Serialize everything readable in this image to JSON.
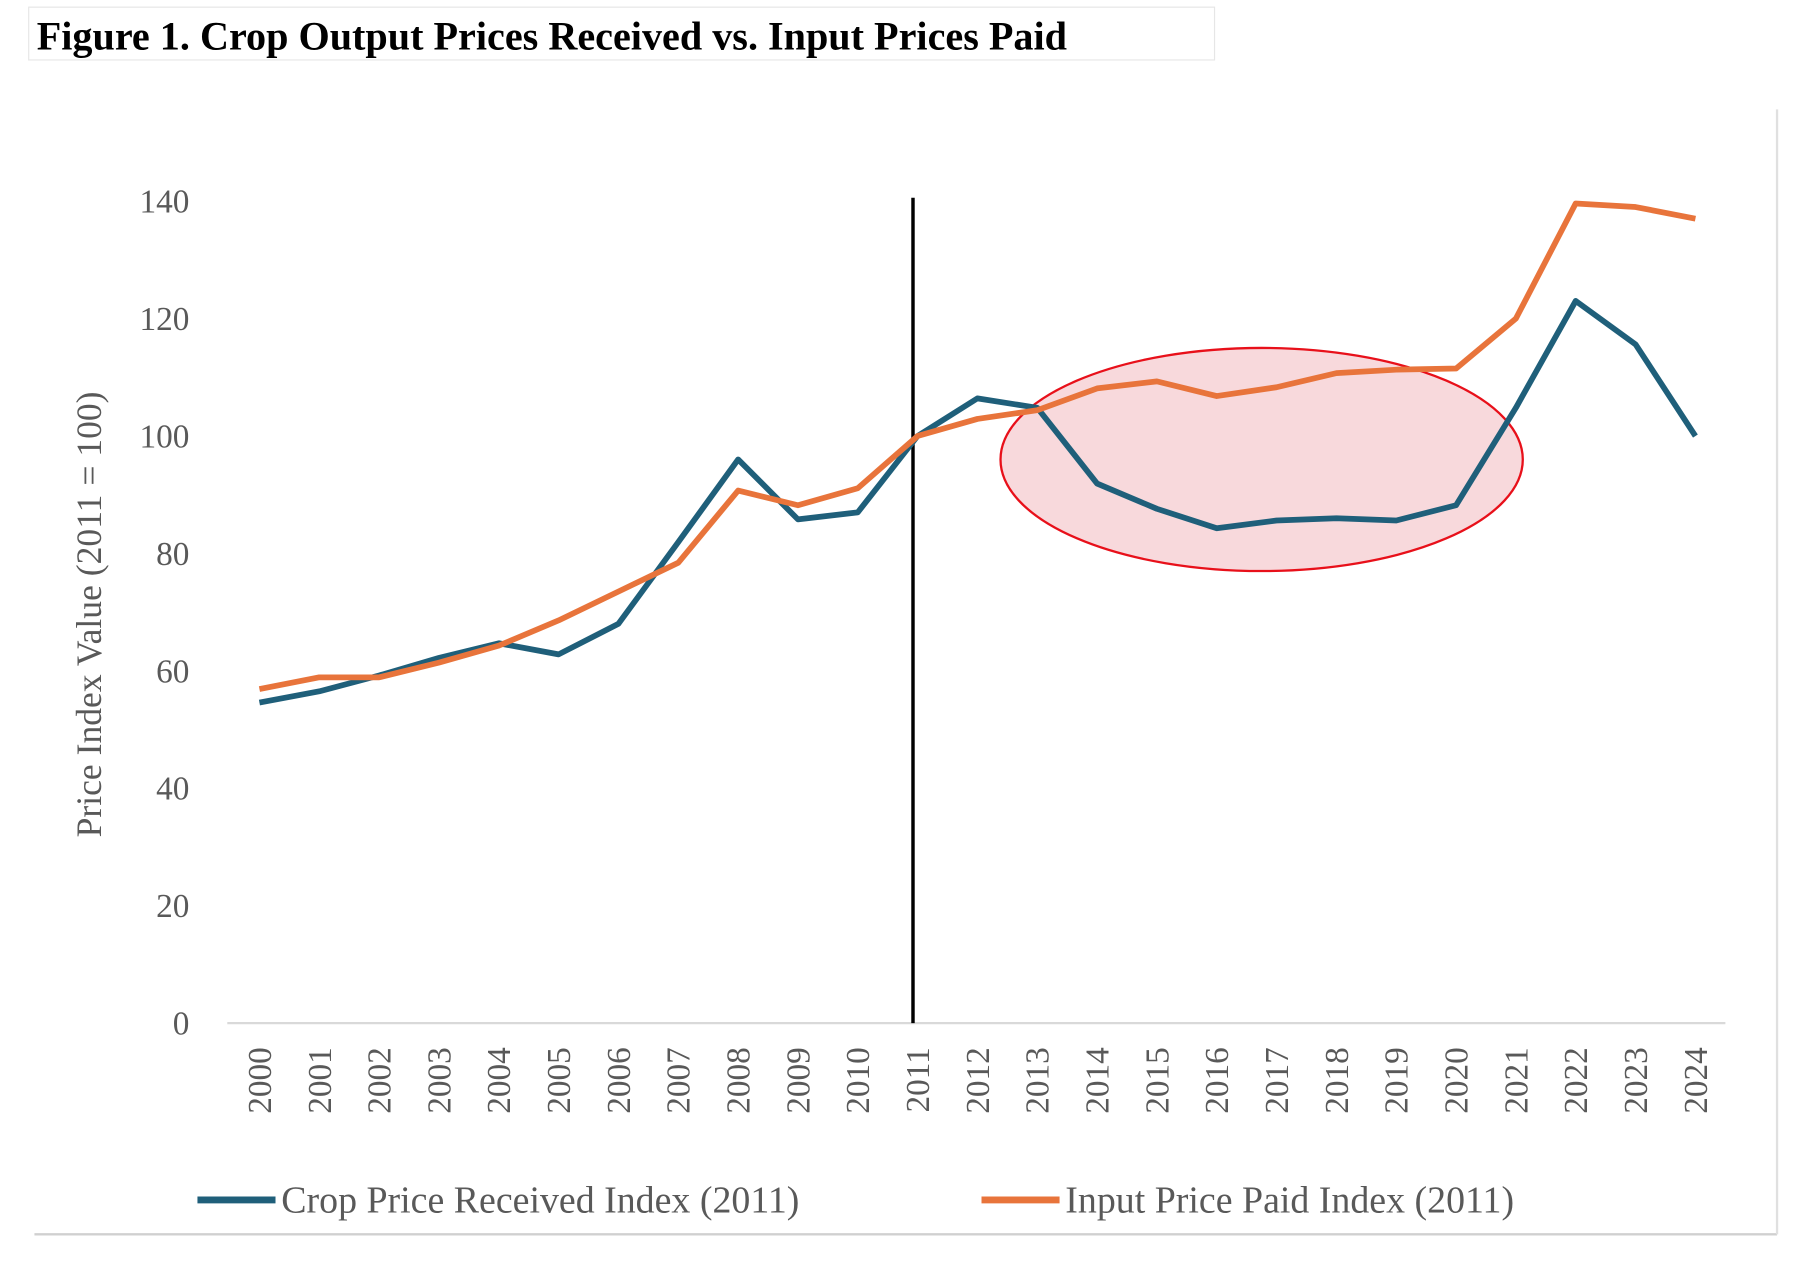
{
  "figure_title": "Figure 1. Crop Output Prices Received vs. Input Prices Paid",
  "chart_data": {
    "type": "line",
    "title": "",
    "xlabel": "",
    "ylabel": "Price Index Value (2011 = 100)",
    "ylim": [
      0,
      140
    ],
    "yticks": [
      "0",
      "20",
      "40",
      "60",
      "80",
      "100",
      "120",
      "140"
    ],
    "x": [
      "2000",
      "2001",
      "2002",
      "2003",
      "2004",
      "2005",
      "2006",
      "2007",
      "2008",
      "2009",
      "2010",
      "2011",
      "2012",
      "2013",
      "2014",
      "2015",
      "2016",
      "2017",
      "2018",
      "2019",
      "2020",
      "2021",
      "2022",
      "2023",
      "2024"
    ],
    "grid": false,
    "legend_placement": "bottom",
    "series": [
      {
        "name": "Crop Price Received Index (2011)",
        "color": "#1f5f7a",
        "values": [
          54.6,
          56.5,
          59.2,
          62.2,
          64.7,
          62.8,
          68.0,
          81.9,
          96.0,
          85.8,
          87.0,
          100.0,
          106.4,
          104.8,
          91.9,
          87.6,
          84.3,
          85.6,
          86.0,
          85.6,
          88.2,
          104.8,
          123.0,
          115.6,
          100.0
        ]
      },
      {
        "name": "Input Price Paid Index (2011)",
        "color": "#e8743b",
        "values": [
          56.9,
          58.9,
          58.9,
          61.4,
          64.3,
          68.6,
          73.5,
          78.4,
          90.7,
          88.2,
          91.1,
          100.0,
          102.9,
          104.4,
          108.1,
          109.3,
          106.8,
          108.3,
          110.7,
          111.3,
          111.5,
          120.0,
          139.6,
          139.0,
          137.0
        ]
      }
    ],
    "annotations": [
      {
        "type": "vertical-line",
        "x": "2011",
        "color": "#000000"
      },
      {
        "type": "ellipse-highlight",
        "x_range": [
          "2013",
          "2021"
        ],
        "y_range": [
          77,
          115
        ],
        "color": "#e8101a"
      }
    ]
  }
}
